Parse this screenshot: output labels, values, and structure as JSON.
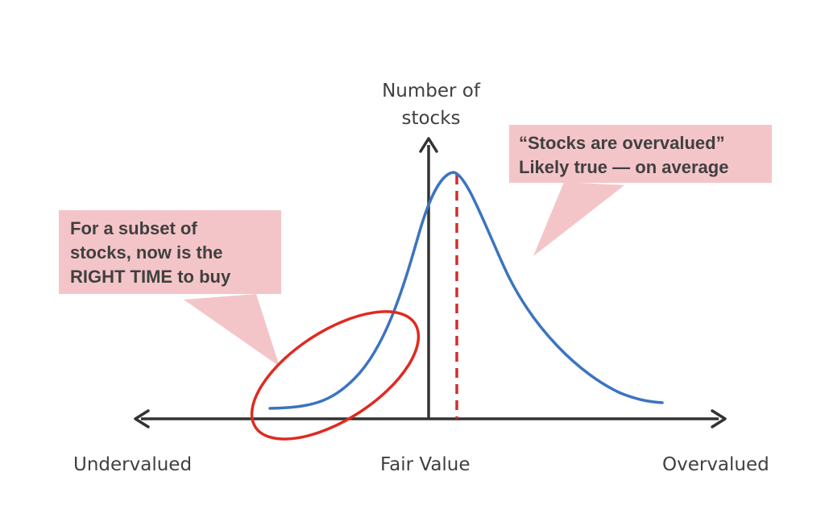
{
  "diagram": {
    "y_axis_label_lines": [
      "Number of",
      "stocks"
    ],
    "x_axis_labels": {
      "left": "Undervalued",
      "center": "Fair Value",
      "right": "Overvalued"
    },
    "callouts": {
      "overvalued": {
        "lines": [
          "“Stocks are overvalued”",
          "Likely true — on average"
        ]
      },
      "subset": {
        "lines": [
          "For a subset of",
          "stocks, now is the",
          "RIGHT TIME to buy"
        ]
      }
    },
    "colors": {
      "axis": "#333333",
      "distribution_curve": "#3b74c0",
      "mean_line": "#d42d2d",
      "highlight_ellipse": "#e02a20",
      "callout_fill": "#f4c5c8",
      "text": "#404040"
    }
  }
}
